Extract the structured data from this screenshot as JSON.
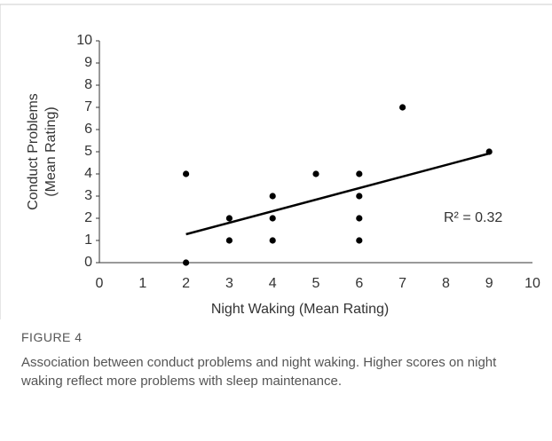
{
  "chart_data": {
    "type": "scatter",
    "xlabel": "Night Waking (Mean Rating)",
    "ylabel": [
      "Conduct Problems",
      "(Mean Rating)"
    ],
    "x": [
      2,
      2,
      3,
      3,
      4,
      4,
      4,
      5,
      6,
      6,
      6,
      6,
      7,
      9
    ],
    "values": [
      4,
      0,
      2,
      1,
      3,
      2,
      1,
      4,
      4,
      3,
      2,
      1,
      7,
      5
    ],
    "color": "#000000",
    "trendline": {
      "x": [
        2,
        9
      ],
      "y": [
        1.28,
        4.92
      ]
    },
    "annotation": "R² = 0.32",
    "xlim": [
      0,
      10
    ],
    "xticks": [
      0,
      1,
      2,
      3,
      4,
      5,
      6,
      7,
      8,
      9,
      10
    ],
    "ylim": [
      0,
      10
    ],
    "yticks": [
      0,
      1,
      2,
      3,
      4,
      5,
      6,
      7,
      8,
      9,
      10
    ]
  },
  "caption": {
    "label": "FIGURE 4",
    "text": "Association between conduct problems and night waking. Higher scores on night waking reflect more problems with sleep maintenance."
  }
}
